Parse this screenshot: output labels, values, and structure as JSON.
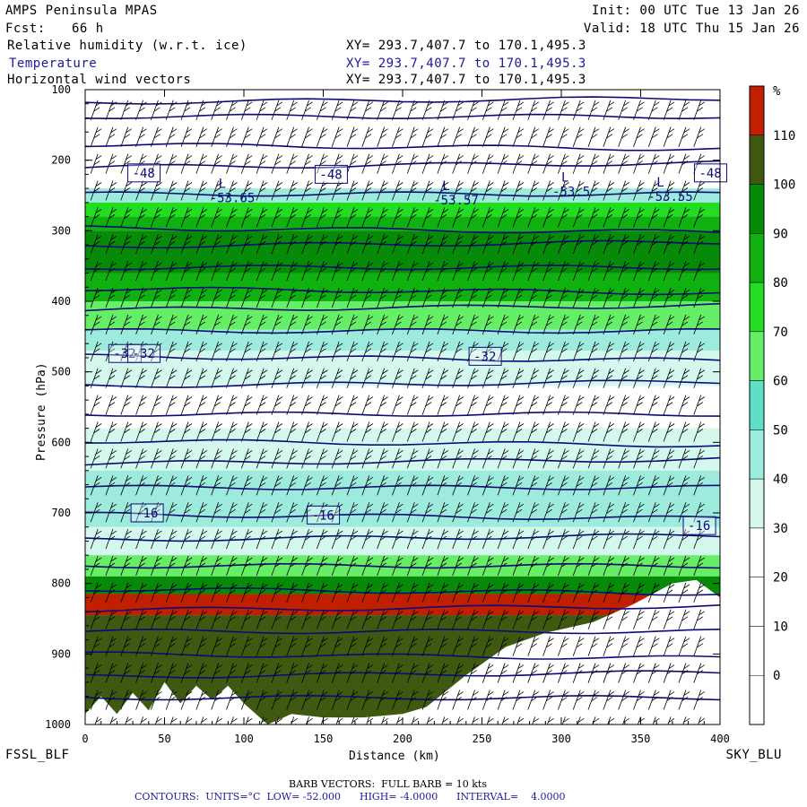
{
  "header": {
    "model": "AMPS Peninsula MPAS",
    "fcst_label": "Fcst:",
    "fcst_value": "66 h",
    "init": "Init: 00 UTC Tue 13 Jan 26",
    "valid": "Valid: 18 UTC Thu 15 Jan 26",
    "fields": [
      {
        "name": "Relative humidity (w.r.t. ice)",
        "xy": "XY= 293.7,407.7 to 170.1,495.3",
        "color": "#000000"
      },
      {
        "name": "Temperature",
        "xy": "XY= 293.7,407.7 to 170.1,495.3",
        "color": "#1a1a9a"
      },
      {
        "name": "Horizontal wind vectors",
        "xy": "XY= 293.7,407.7 to 170.1,495.3",
        "color": "#000000"
      }
    ]
  },
  "corner_labels": {
    "left": "FSSL_BLF",
    "right": "SKY_BLU"
  },
  "footer": {
    "barb": "BARB VECTORS:  FULL BARB = 10 kts",
    "contours": "CONTOURS:  UNITS=°C  LOW= -52.000      HIGH= -4.0000      INTERVAL=    4.0000"
  },
  "colors": {
    "temp_contour": "#0a0a7a",
    "rh_bins": [
      "#ffffff",
      "#ffffff",
      "#ffffff",
      "#ffffff",
      "#d4f8ee",
      "#9debdc",
      "#5ee0c6",
      "#66ee66",
      "#22dd22",
      "#10b010",
      "#078a07",
      "#3f5a10",
      "#c02000"
    ]
  },
  "chart_data": {
    "type": "heatmap",
    "title": "",
    "xlabel": "Distance (km)",
    "ylabel": "Pressure (hPa)",
    "xlim": [
      0,
      400
    ],
    "ylim": [
      1000,
      100
    ],
    "x_ticks": [
      0,
      50,
      100,
      150,
      200,
      250,
      300,
      350,
      400
    ],
    "y_ticks": [
      100,
      200,
      300,
      400,
      500,
      600,
      700,
      800,
      900,
      1000
    ],
    "colorbar": {
      "unit": "%",
      "ticks": [
        110,
        100,
        90,
        80,
        70,
        60,
        50,
        40,
        30,
        20,
        10,
        0
      ]
    },
    "rh_layers": [
      {
        "p_top": 100,
        "p_bot": 240,
        "rh": 10
      },
      {
        "p_top": 240,
        "p_bot": 260,
        "rh": 45
      },
      {
        "p_top": 260,
        "p_bot": 280,
        "rh": 70
      },
      {
        "p_top": 280,
        "p_bot": 300,
        "rh": 85
      },
      {
        "p_top": 300,
        "p_bot": 360,
        "rh": 92
      },
      {
        "p_top": 360,
        "p_bot": 400,
        "rh": 80
      },
      {
        "p_top": 400,
        "p_bot": 440,
        "rh": 65
      },
      {
        "p_top": 440,
        "p_bot": 470,
        "rh": 45
      },
      {
        "p_top": 470,
        "p_bot": 520,
        "rh": 32
      },
      {
        "p_top": 520,
        "p_bot": 580,
        "rh": 25
      },
      {
        "p_top": 580,
        "p_bot": 640,
        "rh": 38
      },
      {
        "p_top": 640,
        "p_bot": 720,
        "rh": 45
      },
      {
        "p_top": 720,
        "p_bot": 760,
        "rh": 38
      },
      {
        "p_top": 760,
        "p_bot": 790,
        "rh": 62
      },
      {
        "p_top": 790,
        "p_bot": 815,
        "rh": 95
      },
      {
        "p_top": 815,
        "p_bot": 845,
        "rh": 112
      },
      {
        "p_top": 845,
        "p_bot": 1000,
        "rh": 102
      }
    ],
    "temperature_contour_labels": [
      {
        "x": 28,
        "p": 218,
        "value": "-48"
      },
      {
        "x": 146,
        "p": 220,
        "value": "-48"
      },
      {
        "x": 385,
        "p": 218,
        "value": "-48"
      },
      {
        "x": 16,
        "p": 474,
        "value": "-32"
      },
      {
        "x": 28,
        "p": 474,
        "value": "-32"
      },
      {
        "x": 243,
        "p": 478,
        "value": "-32"
      },
      {
        "x": 30,
        "p": 700,
        "value": "-16"
      },
      {
        "x": 141,
        "p": 703,
        "value": "-16"
      },
      {
        "x": 378,
        "p": 718,
        "value": "-16"
      }
    ],
    "temperature_isotherms_p": [
      118,
      138,
      178,
      210,
      248,
      296,
      322,
      352,
      382,
      412,
      442,
      478,
      520,
      560,
      598,
      630,
      664,
      702,
      738,
      775,
      808,
      838,
      868,
      900,
      932,
      962
    ],
    "minima": [
      {
        "x": 84,
        "p": 257,
        "label": "L",
        "value": "-53.65"
      },
      {
        "x": 225,
        "p": 260,
        "label": "L",
        "value": "-53.57"
      },
      {
        "x": 300,
        "p": 248,
        "label": "L",
        "value": "-53.5"
      },
      {
        "x": 360,
        "p": 255,
        "label": "L",
        "value": "-53.55"
      }
    ],
    "terrain_surface": [
      {
        "x": 0,
        "p": 985
      },
      {
        "x": 10,
        "p": 960
      },
      {
        "x": 20,
        "p": 985
      },
      {
        "x": 30,
        "p": 955
      },
      {
        "x": 40,
        "p": 980
      },
      {
        "x": 50,
        "p": 940
      },
      {
        "x": 60,
        "p": 970
      },
      {
        "x": 70,
        "p": 945
      },
      {
        "x": 80,
        "p": 965
      },
      {
        "x": 90,
        "p": 945
      },
      {
        "x": 100,
        "p": 970
      },
      {
        "x": 115,
        "p": 1000
      },
      {
        "x": 130,
        "p": 985
      },
      {
        "x": 150,
        "p": 990
      },
      {
        "x": 175,
        "p": 990
      },
      {
        "x": 200,
        "p": 985
      },
      {
        "x": 215,
        "p": 975
      },
      {
        "x": 240,
        "p": 930
      },
      {
        "x": 265,
        "p": 890
      },
      {
        "x": 290,
        "p": 870
      },
      {
        "x": 320,
        "p": 855
      },
      {
        "x": 345,
        "p": 830
      },
      {
        "x": 370,
        "p": 800
      },
      {
        "x": 385,
        "p": 795
      },
      {
        "x": 400,
        "p": 820
      }
    ]
  }
}
